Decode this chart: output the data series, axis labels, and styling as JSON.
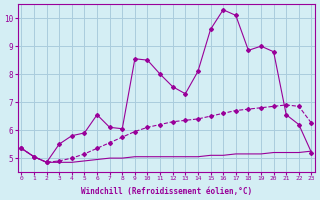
{
  "title": "",
  "xlabel": "Windchill (Refroidissement éolien,°C)",
  "xlabel_bold": true,
  "background_color": "#d4eef4",
  "grid_color": "#aaccdd",
  "line_color": "#990099",
  "x_min": 0,
  "x_max": 23,
  "y_min": 4.5,
  "y_max": 10.5,
  "yticks": [
    5,
    6,
    7,
    8,
    9,
    10
  ],
  "xticks": [
    0,
    1,
    2,
    3,
    4,
    5,
    6,
    7,
    8,
    9,
    10,
    11,
    12,
    13,
    14,
    15,
    16,
    17,
    18,
    19,
    20,
    21,
    22,
    23
  ],
  "line1_x": [
    0,
    1,
    2,
    3,
    4,
    5,
    6,
    7,
    8,
    9,
    10,
    11,
    12,
    13,
    14,
    15,
    16,
    17,
    18,
    19,
    20,
    21,
    22,
    23
  ],
  "line1_y": [
    5.35,
    5.05,
    4.85,
    4.85,
    4.85,
    4.9,
    4.95,
    5.0,
    5.0,
    5.05,
    5.05,
    5.05,
    5.05,
    5.05,
    5.05,
    5.1,
    5.1,
    5.15,
    5.15,
    5.15,
    5.2,
    5.2,
    5.2,
    5.25
  ],
  "line2_x": [
    0,
    1,
    2,
    3,
    4,
    5,
    6,
    7,
    8,
    9,
    10,
    11,
    12,
    13,
    14,
    15,
    16,
    17,
    18,
    19,
    20,
    21,
    22,
    23
  ],
  "line2_y": [
    5.35,
    5.05,
    4.85,
    4.9,
    5.0,
    5.15,
    5.35,
    5.55,
    5.75,
    5.95,
    6.1,
    6.2,
    6.3,
    6.35,
    6.4,
    6.5,
    6.6,
    6.7,
    6.75,
    6.8,
    6.85,
    6.9,
    6.85,
    6.25
  ],
  "line3_x": [
    0,
    1,
    2,
    3,
    4,
    5,
    6,
    7,
    8,
    9,
    10,
    11,
    12,
    13,
    14,
    15,
    16,
    17,
    18,
    19,
    20,
    21,
    22,
    23
  ],
  "line3_y": [
    5.35,
    5.05,
    4.85,
    5.5,
    5.8,
    5.9,
    6.55,
    6.1,
    6.05,
    8.55,
    8.5,
    8.0,
    7.55,
    7.3,
    8.1,
    9.6,
    10.3,
    10.1,
    8.85,
    9.0,
    8.8,
    6.55,
    6.2,
    5.2
  ]
}
